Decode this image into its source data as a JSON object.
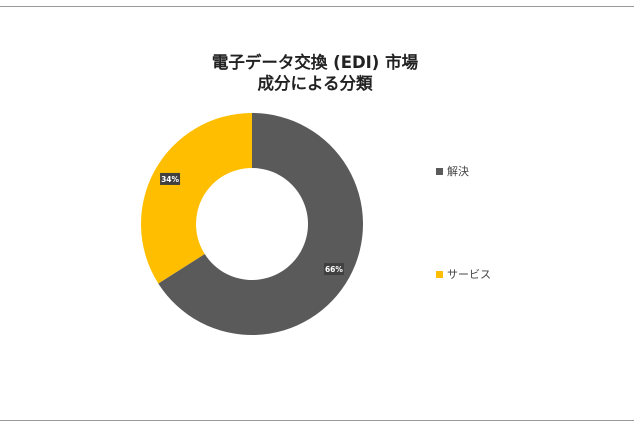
{
  "chart_data": {
    "type": "pie",
    "title_lines": [
      "電子データ交換 (EDI) 市場",
      "成分による分類"
    ],
    "categories": [
      "解決",
      "サービス"
    ],
    "values": [
      66,
      34
    ],
    "data_labels": [
      "66%",
      "34%"
    ],
    "colors": [
      "#5a5a5a",
      "#ffbf00"
    ],
    "donut": true,
    "legend_position": "right"
  }
}
